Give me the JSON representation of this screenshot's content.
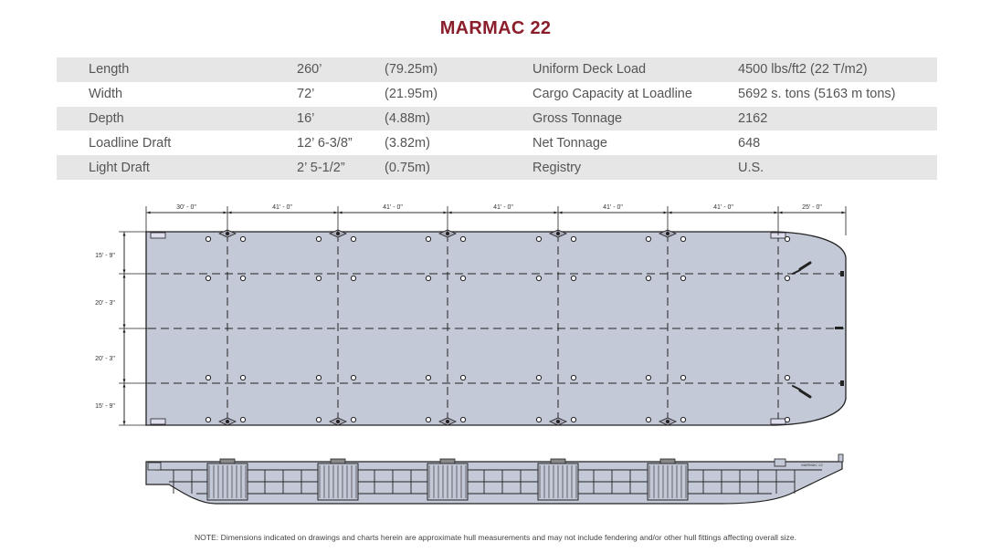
{
  "title": "MARMAC 22",
  "specs": [
    {
      "label": "Length",
      "imperial": "260’",
      "metric": "(79.25m)",
      "label2": "Uniform Deck Load",
      "value2": "4500 lbs/ft2 (22 T/m2)"
    },
    {
      "label": "Width",
      "imperial": "72’",
      "metric": "(21.95m)",
      "label2": "Cargo Capacity at Loadline",
      "value2": "5692 s. tons (5163 m tons)"
    },
    {
      "label": "Depth",
      "imperial": "16’",
      "metric": "(4.88m)",
      "label2": "Gross Tonnage",
      "value2": "2162"
    },
    {
      "label": "Loadline Draft",
      "imperial": "12’ 6-3/8”",
      "metric": "(3.82m)",
      "label2": "Net Tonnage",
      "value2": "648"
    },
    {
      "label": "Light Draft",
      "imperial": "2’ 5-1/2”",
      "metric": "(0.75m)",
      "label2": "Registry",
      "value2": "U.S."
    }
  ],
  "drawing": {
    "length_dims": [
      "30' - 0\"",
      "41' - 0\"",
      "41' - 0\"",
      "41' - 0\"",
      "41' - 0\"",
      "41' - 0\"",
      "25' - 0\""
    ],
    "width_dims": [
      "15' - 9\"",
      "20' - 3\"",
      "20' - 3\"",
      "15' - 9\""
    ],
    "hull_marking": "MARMAC 22",
    "colors": {
      "deck_fill": "#c4c9d8",
      "outline": "#222222"
    }
  },
  "note": "NOTE: Dimensions indicated on drawings and charts herein are approximate hull measurements and may not include fendering and/or other hull fittings affecting overall size."
}
